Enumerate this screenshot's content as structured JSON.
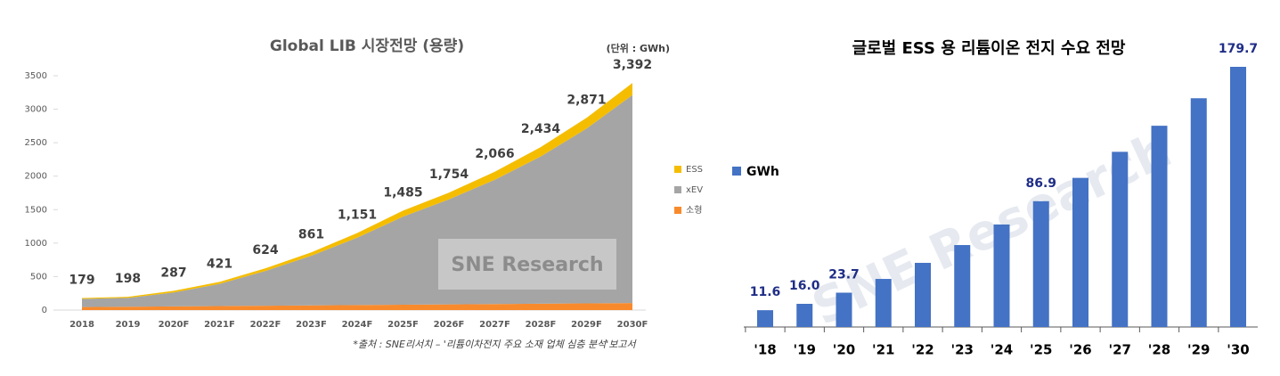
{
  "chart_data": [
    {
      "type": "area",
      "title": "Global LIB 시장전망 (용량)",
      "unit_label": "(단위 : GWh)",
      "source": "*출처 : SNE리서치 – '리튬이차전지 주요 소재 업체 심층 분석'보고서",
      "watermark": "SNE Research",
      "categories": [
        "2018",
        "2019",
        "2020F",
        "2021F",
        "2022F",
        "2023F",
        "2024F",
        "2025F",
        "2026F",
        "2027F",
        "2028F",
        "2029F",
        "2030F"
      ],
      "series": [
        {
          "name": "소형",
          "color": "#f98a2b",
          "values": [
            45,
            50,
            55,
            60,
            65,
            70,
            75,
            80,
            85,
            90,
            95,
            100,
            105
          ]
        },
        {
          "name": "xEV",
          "color": "#a5a5a5",
          "values": [
            122,
            132,
            208,
            331,
            519,
            741,
            1006,
            1315,
            1569,
            1856,
            2199,
            2611,
            3107
          ]
        },
        {
          "name": "ESS",
          "color": "#f5bd00",
          "values": [
            12,
            16,
            24,
            30,
            40,
            50,
            70,
            90,
            100,
            120,
            140,
            160,
            180
          ]
        }
      ],
      "totals": [
        179,
        198,
        287,
        421,
        624,
        861,
        1151,
        1485,
        1754,
        2066,
        2434,
        2871,
        3392
      ],
      "total_labels": [
        "179",
        "198",
        "287",
        "421",
        "624",
        "861",
        "1,151",
        "1,485",
        "1,754",
        "2,066",
        "2,434",
        "2,871",
        "3,392"
      ],
      "ylim": [
        0,
        3500
      ],
      "yticks": [
        0,
        500,
        1000,
        1500,
        2000,
        2500,
        3000,
        3500
      ],
      "legend": "right"
    },
    {
      "type": "bar",
      "title": "글로벌 ESS 용 리튬이온 전지 수요 전망",
      "watermark": "SNE Research",
      "categories": [
        "'18",
        "'19",
        "'20",
        "'21",
        "'22",
        "'23",
        "'24",
        "'25",
        "'26",
        "'27",
        "'28",
        "'29",
        "'30"
      ],
      "series": [
        {
          "name": "GWh",
          "color": "#4472c4",
          "values": [
            11.6,
            16.0,
            23.7,
            33.2,
            44.3,
            56.6,
            70.8,
            86.9,
            103,
            121,
            139,
            158,
            179.7
          ],
          "value_labels": [
            "11.6",
            "16.0",
            "23.7",
            null,
            null,
            null,
            null,
            "86.9",
            null,
            null,
            null,
            null,
            "179.7"
          ]
        }
      ],
      "legend": "left"
    }
  ]
}
